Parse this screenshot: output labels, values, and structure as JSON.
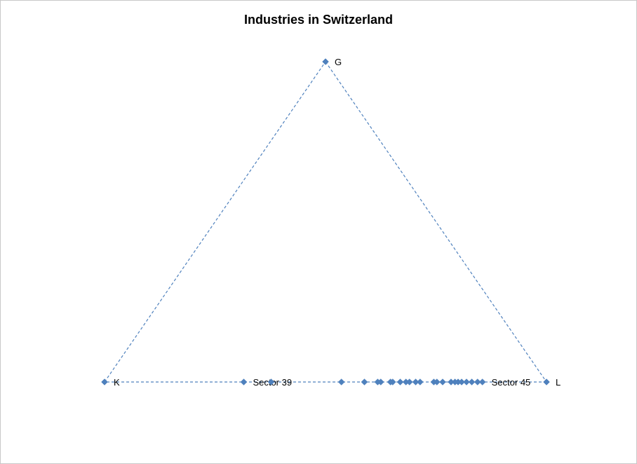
{
  "chart_data": {
    "type": "scatter",
    "title": "Industries in Switzerland",
    "description": "Ternary-style scatter: triangle with vertices K, G, L; industry sectors plotted along the K–L base.",
    "marker_color": "#4F81BD",
    "line_style": "dashed",
    "vertices": [
      {
        "label": "K",
        "x": 0.0,
        "y": 0.0
      },
      {
        "label": "G",
        "x": 0.5,
        "y": 0.866
      },
      {
        "label": "L",
        "x": 1.0,
        "y": 0.0
      }
    ],
    "points": [
      {
        "label": "Sector 39",
        "x": 0.315,
        "y": 0.0
      },
      {
        "label": "",
        "x": 0.377,
        "y": 0.0
      },
      {
        "label": "",
        "x": 0.536,
        "y": 0.0
      },
      {
        "label": "",
        "x": 0.588,
        "y": 0.0
      },
      {
        "label": "",
        "x": 0.618,
        "y": 0.0
      },
      {
        "label": "",
        "x": 0.625,
        "y": 0.0
      },
      {
        "label": "",
        "x": 0.647,
        "y": 0.0
      },
      {
        "label": "",
        "x": 0.652,
        "y": 0.0
      },
      {
        "label": "",
        "x": 0.669,
        "y": 0.0
      },
      {
        "label": "",
        "x": 0.682,
        "y": 0.0
      },
      {
        "label": "",
        "x": 0.69,
        "y": 0.0
      },
      {
        "label": "",
        "x": 0.704,
        "y": 0.0
      },
      {
        "label": "",
        "x": 0.714,
        "y": 0.0
      },
      {
        "label": "",
        "x": 0.745,
        "y": 0.0
      },
      {
        "label": "",
        "x": 0.752,
        "y": 0.0
      },
      {
        "label": "",
        "x": 0.765,
        "y": 0.0
      },
      {
        "label": "",
        "x": 0.784,
        "y": 0.0
      },
      {
        "label": "",
        "x": 0.793,
        "y": 0.0
      },
      {
        "label": "",
        "x": 0.8,
        "y": 0.0
      },
      {
        "label": "",
        "x": 0.808,
        "y": 0.0
      },
      {
        "label": "",
        "x": 0.819,
        "y": 0.0
      },
      {
        "label": "",
        "x": 0.831,
        "y": 0.0
      },
      {
        "label": "",
        "x": 0.844,
        "y": 0.0
      },
      {
        "label": "Sector 45",
        "x": 0.855,
        "y": 0.0
      }
    ]
  }
}
